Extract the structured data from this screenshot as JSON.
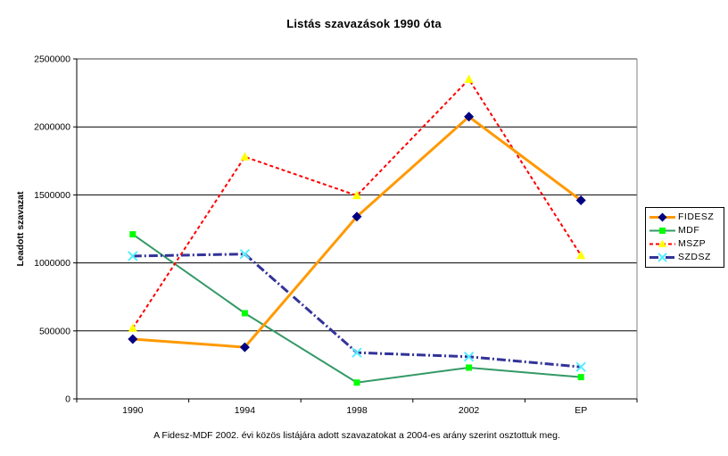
{
  "chart_data": {
    "type": "line",
    "title": "Listás szavazások 1990 óta",
    "ylabel": "Leadott szavazat",
    "xlabel": "",
    "footnote": "A Fidesz-MDF 2002. évi közös listájára adott szavazatokat a 2004-es arány szerint osztottuk meg.",
    "categories": [
      "1990",
      "1994",
      "1998",
      "2002",
      "EP"
    ],
    "series": [
      {
        "name": "FIDESZ",
        "color": "#FF9900",
        "line_style": "solid",
        "line_width": 3,
        "marker": "diamond",
        "marker_color": "#000080",
        "values": [
          440000,
          380000,
          1340000,
          2075000,
          1460000
        ]
      },
      {
        "name": "MDF",
        "color": "#339966",
        "line_style": "solid",
        "line_width": 2,
        "marker": "square",
        "marker_color": "#00FF00",
        "values": [
          1210000,
          630000,
          120000,
          230000,
          160000
        ]
      },
      {
        "name": "MSZP",
        "color": "#FF0000",
        "line_style": "dashed",
        "line_width": 2,
        "marker": "triangle",
        "marker_color": "#FFFF00",
        "values": [
          520000,
          1780000,
          1495000,
          2350000,
          1055000
        ]
      },
      {
        "name": "SZDSZ",
        "color": "#333399",
        "line_style": "dash-dot",
        "line_width": 3,
        "marker": "x",
        "marker_color": "#55EEFF",
        "values": [
          1050000,
          1065000,
          340000,
          310000,
          235000
        ]
      }
    ],
    "ylim": [
      0,
      2500000
    ],
    "y_tick_labels": [
      "0",
      "500000",
      "1000000",
      "1500000",
      "2000000",
      "2500000"
    ],
    "grid": true,
    "legend_position": "right",
    "colors": {
      "axis": "#000000",
      "gridline": "#000000",
      "plot_border": "#808080",
      "background": "#FFFFFF",
      "text": "#000000"
    }
  }
}
